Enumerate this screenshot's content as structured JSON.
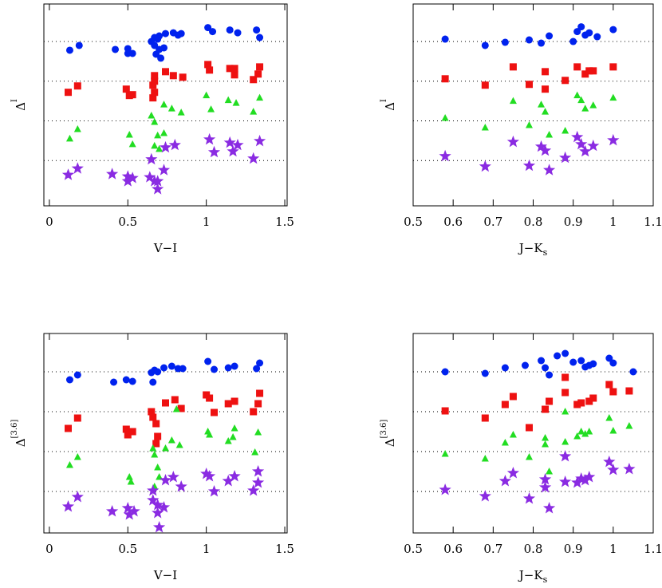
{
  "chart_data": [
    {
      "type": "scatter",
      "xlabel": {
        "text": "V−I"
      },
      "ylabel": {
        "text": "Δ",
        "sup": "I"
      },
      "xlim": [
        -0.035,
        1.515
      ],
      "ylim": [
        -0.14,
        4.945
      ],
      "xticks": [
        0,
        0.5,
        1,
        1.5
      ],
      "hlines": [
        1,
        2,
        3,
        4
      ],
      "series": [
        {
          "color": "#0022ee",
          "marker": "circle",
          "x": [
            0.13,
            0.19,
            0.42,
            0.5,
            0.53,
            0.5,
            0.65,
            0.67,
            0.69,
            0.7,
            0.74,
            0.79,
            0.82,
            0.84,
            0.67,
            0.7,
            0.73,
            0.68,
            0.71,
            1.01,
            1.04,
            1.15,
            1.2,
            1.32,
            1.34
          ],
          "y": [
            3.78,
            3.9,
            3.8,
            3.82,
            3.7,
            3.7,
            4.0,
            4.1,
            4.06,
            4.14,
            4.2,
            4.22,
            4.16,
            4.2,
            3.9,
            3.8,
            3.84,
            3.68,
            3.58,
            4.35,
            4.25,
            4.29,
            4.22,
            4.29,
            4.1
          ]
        },
        {
          "color": "#ee1111",
          "marker": "square",
          "x": [
            0.12,
            0.18,
            0.49,
            0.51,
            0.53,
            0.66,
            0.67,
            0.67,
            0.74,
            0.79,
            0.85,
            0.66,
            0.67,
            1.01,
            1.02,
            1.15,
            1.18,
            1.18,
            1.3,
            1.34,
            1.33
          ],
          "y": [
            2.72,
            2.88,
            2.8,
            2.64,
            2.66,
            2.9,
            3.0,
            3.14,
            3.24,
            3.14,
            3.1,
            2.58,
            2.72,
            3.42,
            3.28,
            3.32,
            3.16,
            3.32,
            3.04,
            3.36,
            3.18
          ]
        },
        {
          "color": "#22dd22",
          "marker": "triangle",
          "x": [
            0.13,
            0.18,
            0.51,
            0.53,
            0.65,
            0.67,
            0.69,
            0.73,
            0.78,
            0.84,
            0.67,
            0.7,
            0.73,
            1.0,
            1.03,
            1.14,
            1.19,
            1.3,
            1.34
          ],
          "y": [
            1.55,
            1.79,
            1.65,
            1.41,
            2.13,
            1.97,
            1.63,
            2.41,
            2.31,
            2.21,
            1.37,
            1.29,
            1.69,
            2.64,
            2.29,
            2.52,
            2.45,
            2.23,
            2.58
          ]
        },
        {
          "color": "#8a2be2",
          "marker": "star",
          "x": [
            0.12,
            0.18,
            0.4,
            0.5,
            0.5,
            0.53,
            0.64,
            0.67,
            0.69,
            0.73,
            0.74,
            0.8,
            1.02,
            1.05,
            1.15,
            1.17,
            1.2,
            1.3,
            1.34,
            0.65,
            0.69
          ],
          "y": [
            0.64,
            0.8,
            0.66,
            0.6,
            0.48,
            0.56,
            0.58,
            0.48,
            0.28,
            0.76,
            1.33,
            1.39,
            1.53,
            1.21,
            1.45,
            1.23,
            1.39,
            1.05,
            1.49,
            1.03,
            0.48
          ]
        }
      ]
    },
    {
      "type": "scatter",
      "xlabel": {
        "text": "J−K",
        "sub": "s"
      },
      "ylabel": {
        "text": "Δ",
        "sup": "I"
      },
      "xlim": [
        0.5,
        1.1
      ],
      "ylim": [
        -0.14,
        4.945
      ],
      "xticks": [
        0.5,
        0.6,
        0.7,
        0.8,
        0.9,
        1,
        1.1
      ],
      "hlines": [
        1,
        2,
        3,
        4
      ],
      "series": [
        {
          "color": "#0022ee",
          "marker": "circle",
          "x": [
            0.58,
            0.68,
            0.73,
            0.79,
            0.82,
            0.84,
            0.9,
            0.91,
            0.92,
            0.93,
            0.94,
            0.96,
            1.0
          ],
          "y": [
            4.06,
            3.9,
            3.98,
            4.04,
            3.96,
            4.14,
            4.0,
            4.25,
            4.37,
            4.16,
            4.22,
            4.12,
            4.3
          ]
        },
        {
          "color": "#ee1111",
          "marker": "square",
          "x": [
            0.58,
            0.68,
            0.75,
            0.79,
            0.83,
            0.83,
            0.88,
            0.91,
            0.93,
            0.95,
            1.0,
            0.94
          ],
          "y": [
            3.06,
            2.9,
            3.36,
            2.92,
            3.24,
            2.8,
            3.02,
            3.36,
            3.18,
            3.26,
            3.36,
            3.26
          ]
        },
        {
          "color": "#22dd22",
          "marker": "triangle",
          "x": [
            0.58,
            0.68,
            0.75,
            0.79,
            0.82,
            0.83,
            0.84,
            0.88,
            0.91,
            0.92,
            0.93,
            0.95,
            1.0
          ],
          "y": [
            2.07,
            1.83,
            2.5,
            1.89,
            2.41,
            2.23,
            1.65,
            1.75,
            2.64,
            2.52,
            2.31,
            2.39,
            2.58
          ]
        },
        {
          "color": "#8a2be2",
          "marker": "star",
          "x": [
            0.58,
            0.68,
            0.75,
            0.79,
            0.82,
            0.83,
            0.84,
            0.88,
            0.91,
            0.92,
            0.93,
            0.95,
            1.0
          ],
          "y": [
            1.11,
            0.85,
            1.47,
            0.87,
            1.35,
            1.25,
            0.76,
            1.07,
            1.59,
            1.41,
            1.23,
            1.37,
            1.51
          ]
        }
      ]
    },
    {
      "type": "scatter",
      "xlabel": {
        "text": "V−I"
      },
      "ylabel": {
        "text": "Δ",
        "sup": "[3.6]"
      },
      "xlim": [
        -0.035,
        1.515
      ],
      "ylim": [
        -0.04,
        4.96
      ],
      "xticks": [
        0,
        0.5,
        1,
        1.5
      ],
      "hlines": [
        1,
        2,
        3,
        4
      ],
      "series": [
        {
          "color": "#0022ee",
          "marker": "circle",
          "x": [
            0.13,
            0.18,
            0.41,
            0.49,
            0.53,
            0.65,
            0.67,
            0.69,
            0.73,
            0.78,
            0.82,
            0.85,
            1.01,
            1.05,
            1.14,
            1.18,
            1.32,
            1.34,
            0.66
          ],
          "y": [
            3.8,
            3.92,
            3.74,
            3.8,
            3.76,
            3.98,
            4.04,
            4.0,
            4.1,
            4.14,
            4.08,
            4.08,
            4.26,
            4.06,
            4.1,
            4.14,
            4.08,
            4.22,
            3.74
          ]
        },
        {
          "color": "#ee1111",
          "marker": "square",
          "x": [
            0.12,
            0.18,
            0.49,
            0.5,
            0.53,
            0.65,
            0.66,
            0.68,
            0.69,
            0.68,
            0.74,
            0.8,
            0.84,
            1.0,
            1.02,
            1.05,
            1.14,
            1.18,
            1.3,
            1.34,
            1.33
          ],
          "y": [
            2.58,
            2.84,
            2.56,
            2.42,
            2.5,
            3.0,
            2.86,
            2.7,
            2.38,
            2.2,
            3.22,
            3.3,
            3.08,
            3.42,
            3.34,
            2.98,
            3.2,
            3.26,
            3.0,
            3.46,
            3.2
          ]
        },
        {
          "color": "#22dd22",
          "marker": "triangle",
          "x": [
            0.13,
            0.18,
            0.51,
            0.52,
            0.66,
            0.67,
            0.69,
            0.74,
            0.78,
            0.83,
            0.81,
            0.7,
            1.01,
            1.02,
            1.14,
            1.17,
            1.18,
            1.31,
            1.33,
            0.67
          ],
          "y": [
            1.66,
            1.86,
            1.36,
            1.24,
            2.08,
            1.92,
            1.6,
            2.08,
            2.28,
            2.16,
            3.06,
            1.36,
            2.5,
            2.42,
            2.26,
            2.36,
            2.58,
            1.98,
            2.48,
            1.12
          ]
        },
        {
          "color": "#8a2be2",
          "marker": "star",
          "x": [
            0.12,
            0.18,
            0.4,
            0.5,
            0.51,
            0.54,
            0.66,
            0.66,
            0.69,
            0.69,
            0.73,
            0.7,
            0.74,
            0.79,
            0.84,
            1.0,
            1.02,
            1.05,
            1.14,
            1.18,
            1.3,
            1.33,
            1.33
          ],
          "y": [
            0.62,
            0.86,
            0.5,
            0.58,
            0.42,
            0.5,
            1.02,
            0.78,
            0.66,
            0.46,
            0.6,
            0.1,
            1.28,
            1.36,
            1.12,
            1.44,
            1.38,
            1.0,
            1.26,
            1.38,
            1.02,
            1.5,
            1.22
          ]
        }
      ]
    },
    {
      "type": "scatter",
      "xlabel": {
        "text": "J−K",
        "sub": "s"
      },
      "ylabel": {
        "text": "Δ",
        "sup": "[3.6]"
      },
      "xlim": [
        0.5,
        1.1
      ],
      "ylim": [
        -0.04,
        4.96
      ],
      "xticks": [
        0.5,
        0.6,
        0.7,
        0.8,
        0.9,
        1,
        1.1
      ],
      "hlines": [
        1,
        2,
        3,
        4
      ],
      "series": [
        {
          "color": "#0022ee",
          "marker": "circle",
          "x": [
            0.58,
            0.68,
            0.73,
            0.78,
            0.82,
            0.83,
            0.86,
            0.88,
            0.84,
            0.9,
            0.92,
            0.93,
            0.94,
            0.95,
            0.99,
            1.0,
            1.05
          ],
          "y": [
            4.0,
            3.96,
            4.1,
            4.16,
            4.28,
            4.1,
            4.4,
            4.46,
            3.92,
            4.24,
            4.28,
            4.12,
            4.16,
            4.2,
            4.34,
            4.22,
            4.0
          ]
        },
        {
          "color": "#ee1111",
          "marker": "square",
          "x": [
            0.58,
            0.68,
            0.73,
            0.75,
            0.79,
            0.83,
            0.84,
            0.88,
            0.88,
            0.91,
            0.92,
            0.94,
            0.95,
            0.99,
            1.0,
            1.04
          ],
          "y": [
            3.02,
            2.84,
            3.18,
            3.38,
            2.6,
            3.06,
            3.26,
            3.86,
            3.48,
            3.18,
            3.22,
            3.26,
            3.34,
            3.68,
            3.5,
            3.52
          ]
        },
        {
          "color": "#22dd22",
          "marker": "triangle",
          "x": [
            0.58,
            0.68,
            0.73,
            0.75,
            0.79,
            0.83,
            0.83,
            0.84,
            0.88,
            0.88,
            0.91,
            0.92,
            0.93,
            0.94,
            0.99,
            1.0,
            1.04
          ],
          "y": [
            1.94,
            1.82,
            2.22,
            2.42,
            1.86,
            2.34,
            2.18,
            1.5,
            3.0,
            2.24,
            2.38,
            2.5,
            2.44,
            2.5,
            2.84,
            2.52,
            2.64
          ]
        },
        {
          "color": "#8a2be2",
          "marker": "star",
          "x": [
            0.58,
            0.68,
            0.73,
            0.75,
            0.79,
            0.83,
            0.83,
            0.84,
            0.88,
            0.88,
            0.91,
            0.92,
            0.93,
            0.94,
            0.99,
            1.0,
            1.04
          ],
          "y": [
            1.04,
            0.88,
            1.26,
            1.46,
            0.82,
            1.3,
            1.1,
            0.58,
            1.88,
            1.24,
            1.22,
            1.32,
            1.28,
            1.36,
            1.74,
            1.54,
            1.56
          ]
        }
      ]
    }
  ]
}
